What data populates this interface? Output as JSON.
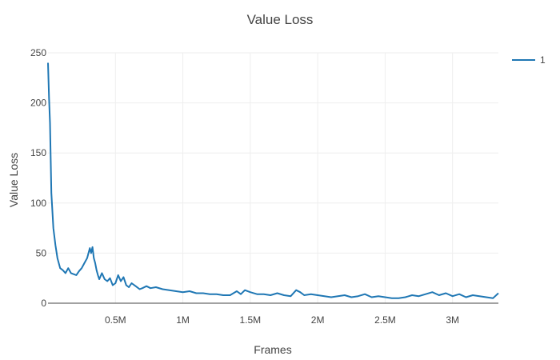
{
  "chart_data": {
    "type": "line",
    "title": "Value Loss",
    "xlabel": "Frames",
    "ylabel": "Value Loss",
    "xlim": [
      0,
      3340000
    ],
    "ylim": [
      0,
      250
    ],
    "xticks": [
      500000,
      1000000,
      1500000,
      2000000,
      2500000,
      3000000
    ],
    "xtick_labels": [
      "0.5M",
      "1M",
      "1.5M",
      "2M",
      "2.5M",
      "3M"
    ],
    "yticks": [
      0,
      50,
      100,
      150,
      200,
      250
    ],
    "ytick_labels": [
      "0",
      "50",
      "100",
      "150",
      "200",
      "250"
    ],
    "grid": true,
    "legend_position": "top-right",
    "series": [
      {
        "name": "1",
        "color": "#1f77b4",
        "x": [
          0,
          8000,
          15000,
          25000,
          40000,
          55000,
          70000,
          90000,
          110000,
          130000,
          150000,
          170000,
          190000,
          210000,
          230000,
          250000,
          270000,
          290000,
          310000,
          320000,
          330000,
          340000,
          350000,
          360000,
          370000,
          380000,
          400000,
          420000,
          440000,
          460000,
          480000,
          500000,
          520000,
          540000,
          560000,
          580000,
          600000,
          620000,
          650000,
          680000,
          700000,
          730000,
          760000,
          800000,
          850000,
          900000,
          950000,
          1000000,
          1050000,
          1100000,
          1150000,
          1200000,
          1250000,
          1300000,
          1350000,
          1400000,
          1430000,
          1460000,
          1500000,
          1550000,
          1600000,
          1650000,
          1700000,
          1750000,
          1800000,
          1840000,
          1870000,
          1900000,
          1950000,
          2000000,
          2050000,
          2100000,
          2150000,
          2200000,
          2250000,
          2300000,
          2350000,
          2400000,
          2450000,
          2500000,
          2550000,
          2600000,
          2650000,
          2700000,
          2750000,
          2800000,
          2850000,
          2900000,
          2950000,
          3000000,
          3050000,
          3100000,
          3150000,
          3200000,
          3250000,
          3300000,
          3340000
        ],
        "values": [
          240,
          205,
          180,
          110,
          75,
          58,
          45,
          35,
          33,
          30,
          35,
          30,
          29,
          28,
          32,
          35,
          40,
          45,
          55,
          50,
          56,
          45,
          40,
          33,
          28,
          24,
          30,
          24,
          22,
          25,
          18,
          20,
          28,
          22,
          26,
          18,
          16,
          20,
          17,
          14,
          15,
          17,
          15,
          16,
          14,
          13,
          12,
          11,
          12,
          10,
          10,
          9,
          9,
          8,
          8,
          12,
          9,
          13,
          11,
          9,
          9,
          8,
          10,
          8,
          7,
          13,
          11,
          8,
          9,
          8,
          7,
          6,
          7,
          8,
          6,
          7,
          9,
          6,
          7,
          6,
          5,
          5,
          6,
          8,
          7,
          9,
          11,
          8,
          10,
          7,
          9,
          6,
          8,
          7,
          6,
          5,
          10
        ]
      }
    ]
  }
}
